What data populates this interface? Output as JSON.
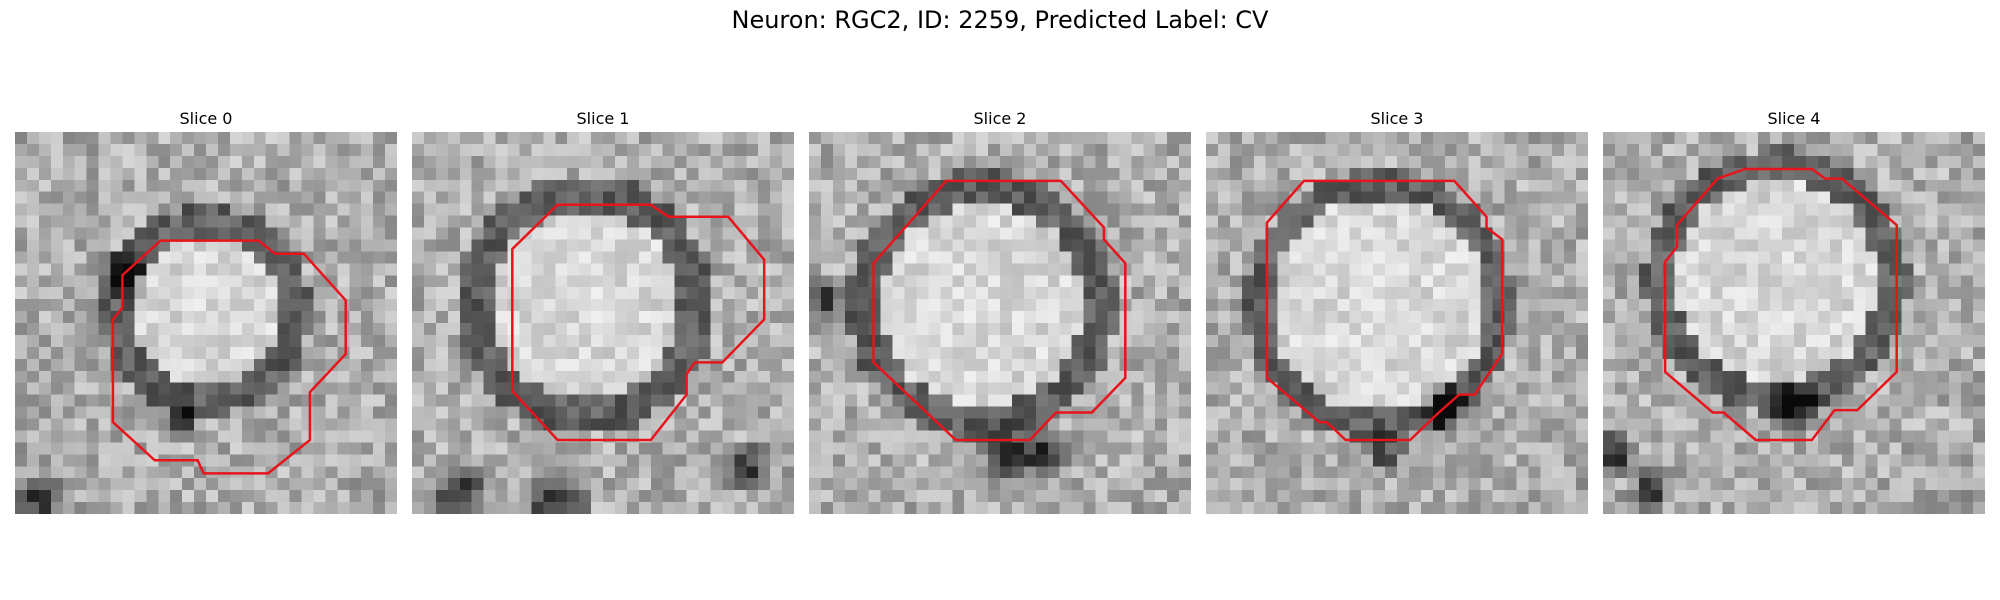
{
  "figure": {
    "title": "Neuron: RGC2, ID: 2259, Predicted Label: CV"
  },
  "panels": [
    {
      "title": "Slice 0"
    },
    {
      "title": "Slice 1"
    },
    {
      "title": "Slice 2"
    },
    {
      "title": "Slice 3"
    },
    {
      "title": "Slice 4"
    }
  ],
  "colors": {
    "contour": "#e8141c",
    "background": "#ffffff"
  }
}
